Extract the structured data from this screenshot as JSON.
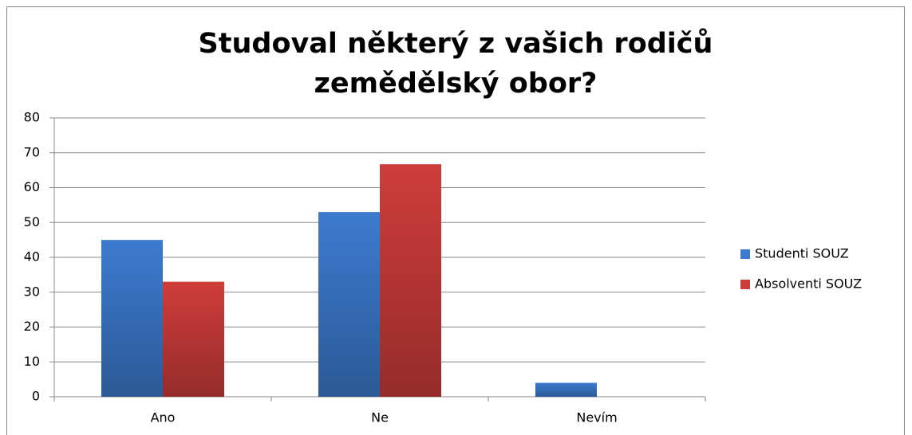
{
  "chart_data": {
    "type": "bar",
    "title": "Studoval některý z vašich rodičů zemědělský obor?",
    "categories": [
      "Ano",
      "Ne",
      "Nevím"
    ],
    "series": [
      {
        "name": "Studenti SOUZ",
        "color": "#3d7bd0",
        "values": [
          45,
          53,
          4
        ]
      },
      {
        "name": "Absolventi SOUZ",
        "color": "#cf3d3a",
        "values": [
          33,
          66.7,
          0
        ]
      }
    ],
    "ylim": [
      0,
      80
    ],
    "yticks": [
      0,
      10,
      20,
      30,
      40,
      50,
      60,
      70,
      80
    ],
    "grid": true,
    "legend": "right"
  }
}
